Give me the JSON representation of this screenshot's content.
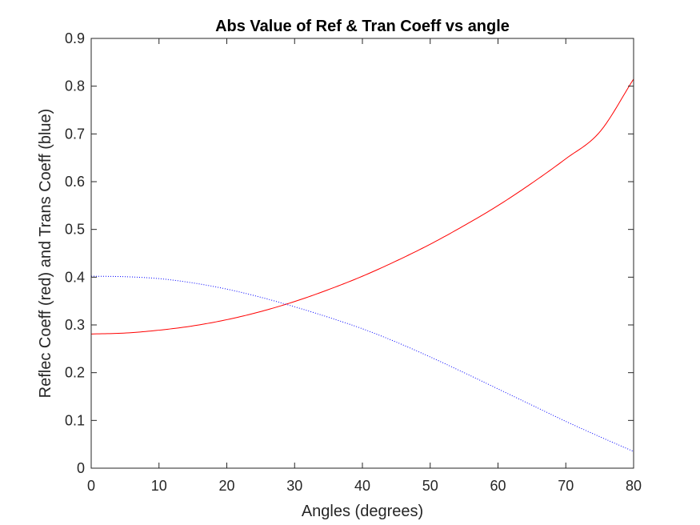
{
  "chart_data": {
    "type": "line",
    "title": "Abs Value of Ref & Tran Coeff vs angle",
    "xlabel": "Angles (degrees)",
    "ylabel": "Reflec Coeff (red) and Trans Coeff (blue)",
    "xlim": [
      0,
      80
    ],
    "ylim": [
      0,
      0.9
    ],
    "xticks": [
      0,
      10,
      20,
      30,
      40,
      50,
      60,
      70,
      80
    ],
    "yticks": [
      0,
      0.1,
      0.2,
      0.3,
      0.4,
      0.5,
      0.6,
      0.7,
      0.8,
      0.9
    ],
    "xtick_labels": [
      "0",
      "10",
      "20",
      "30",
      "40",
      "50",
      "60",
      "70",
      "80"
    ],
    "ytick_labels": [
      "0",
      "0.1",
      "0.2",
      "0.3",
      "0.4",
      "0.5",
      "0.6",
      "0.7",
      "0.8",
      "0.9"
    ],
    "grid": false,
    "box": true,
    "x": [
      0,
      5,
      10,
      15,
      20,
      25,
      30,
      35,
      40,
      45,
      50,
      55,
      60,
      65,
      70,
      75,
      80
    ],
    "series": [
      {
        "color": "#ff0000",
        "line_style": "solid",
        "values": [
          0.281,
          0.283,
          0.289,
          0.298,
          0.311,
          0.328,
          0.349,
          0.374,
          0.402,
          0.434,
          0.469,
          0.508,
          0.55,
          0.597,
          0.648,
          0.704,
          0.815
        ]
      },
      {
        "color": "#0000ff",
        "line_style": "dotted",
        "values": [
          0.402,
          0.401,
          0.397,
          0.388,
          0.375,
          0.358,
          0.338,
          0.316,
          0.292,
          0.264,
          0.233,
          0.2,
          0.166,
          0.132,
          0.098,
          0.066,
          0.035
        ]
      }
    ]
  }
}
